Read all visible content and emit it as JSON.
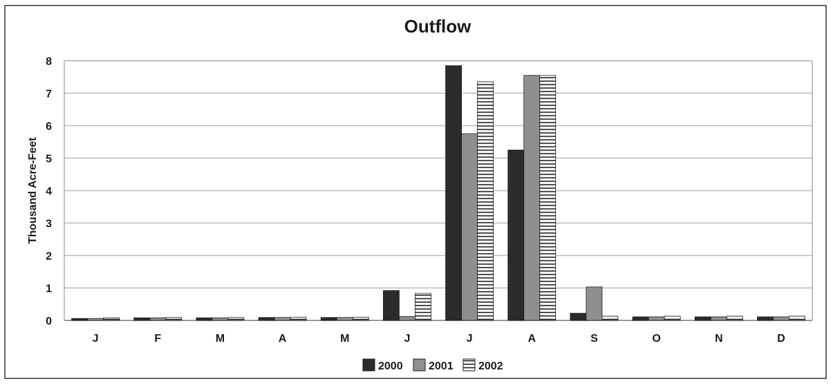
{
  "chart_data": {
    "type": "bar",
    "title": "Outflow",
    "xlabel": "",
    "ylabel": "Thousand Acre-Feet",
    "ylim": [
      0,
      8
    ],
    "yticks": [
      "0",
      "1",
      "2",
      "3",
      "4",
      "5",
      "6",
      "7",
      "8"
    ],
    "categories": [
      "J",
      "F",
      "M",
      "A",
      "M",
      "J",
      "J",
      "A",
      "S",
      "O",
      "N",
      "D"
    ],
    "grid": true,
    "legend_position": "bottom",
    "series": [
      {
        "name": "2000",
        "color": "#2b2b2b",
        "pattern": "solid-dark",
        "values": [
          0.06,
          0.08,
          0.08,
          0.09,
          0.09,
          0.92,
          7.85,
          5.25,
          0.22,
          0.11,
          0.11,
          0.11
        ]
      },
      {
        "name": "2001",
        "color": "#8f8f8f",
        "pattern": "solid-gray",
        "values": [
          0.06,
          0.08,
          0.08,
          0.09,
          0.09,
          0.12,
          5.75,
          7.55,
          1.03,
          0.11,
          0.11,
          0.11
        ]
      },
      {
        "name": "2002",
        "color": "#ffffff",
        "pattern": "horizontal-stripes",
        "values": [
          0.08,
          0.09,
          0.09,
          0.1,
          0.1,
          0.83,
          7.35,
          7.55,
          0.13,
          0.13,
          0.13,
          0.13
        ]
      }
    ]
  }
}
